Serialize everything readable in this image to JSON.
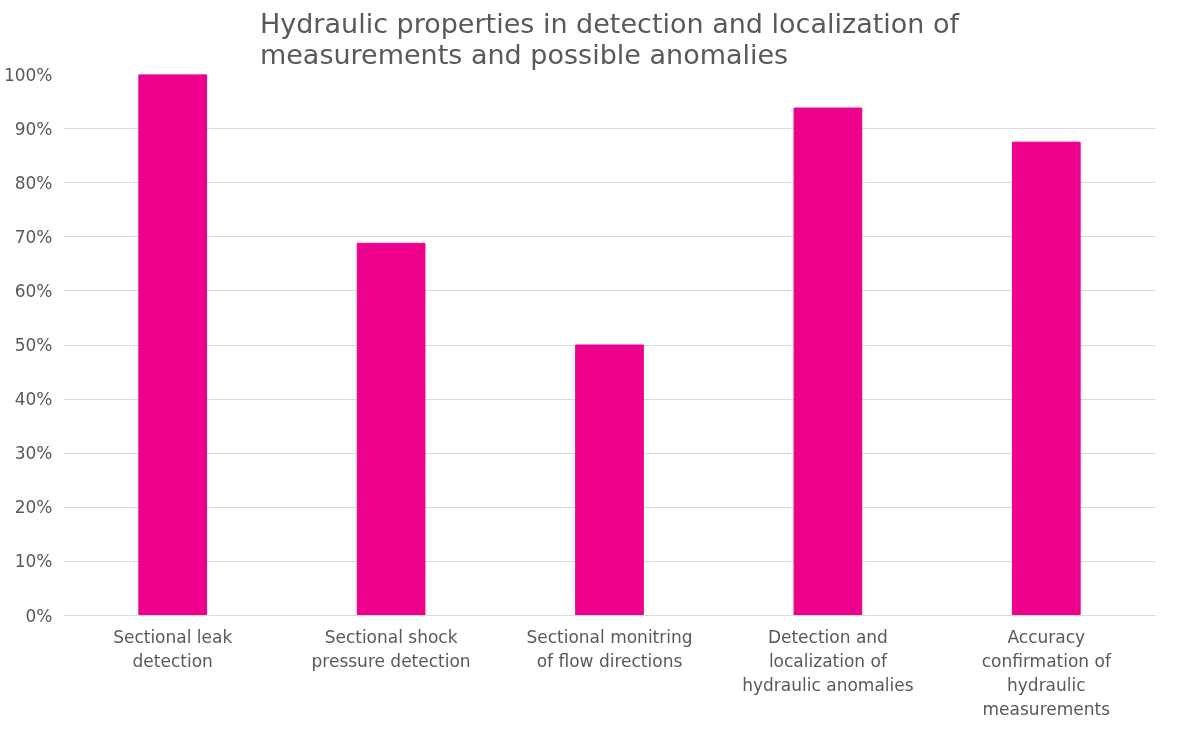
{
  "chart_data": {
    "type": "bar",
    "title": "Hydraulic properties in detection and localization of measurements and possible anomalies",
    "categories": [
      "Sectional leak detection",
      "Sectional shock pressure detection",
      "Sectional monitring of flow directions",
      "Detection and localization of hydraulic anomalies",
      "Accuracy confirmation of hydraulic measurements"
    ],
    "values": [
      100,
      68.8,
      50,
      93.8,
      87.5
    ],
    "color": "#ec008c",
    "ylim": [
      0,
      100
    ],
    "yticks": [
      {
        "value": 0,
        "label": "0%"
      },
      {
        "value": 10,
        "label": "10%"
      },
      {
        "value": 20,
        "label": "20%"
      },
      {
        "value": 30,
        "label": "30%"
      },
      {
        "value": 40,
        "label": "40%"
      },
      {
        "value": 50,
        "label": "50%"
      },
      {
        "value": 60,
        "label": "60%"
      },
      {
        "value": 70,
        "label": "70%"
      },
      {
        "value": 80,
        "label": "80%"
      },
      {
        "value": 90,
        "label": "90%"
      },
      {
        "value": 100,
        "label": "100%"
      }
    ],
    "grid": "y"
  }
}
